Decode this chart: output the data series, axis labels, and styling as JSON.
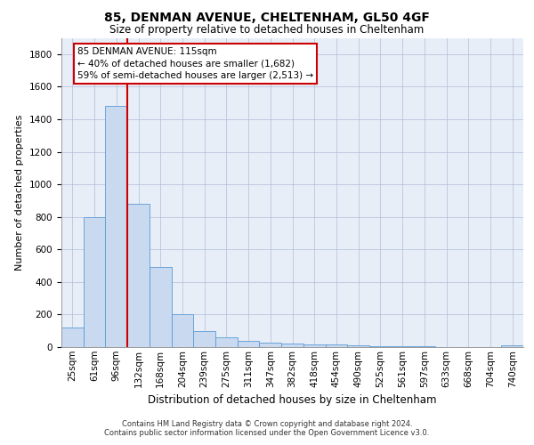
{
  "title1": "85, DENMAN AVENUE, CHELTENHAM, GL50 4GF",
  "title2": "Size of property relative to detached houses in Cheltenham",
  "xlabel": "Distribution of detached houses by size in Cheltenham",
  "ylabel": "Number of detached properties",
  "categories": [
    "25sqm",
    "61sqm",
    "96sqm",
    "132sqm",
    "168sqm",
    "204sqm",
    "239sqm",
    "275sqm",
    "311sqm",
    "347sqm",
    "382sqm",
    "418sqm",
    "454sqm",
    "490sqm",
    "525sqm",
    "561sqm",
    "597sqm",
    "633sqm",
    "668sqm",
    "704sqm",
    "740sqm"
  ],
  "values": [
    120,
    800,
    1480,
    880,
    490,
    205,
    100,
    60,
    40,
    25,
    20,
    18,
    15,
    10,
    8,
    5,
    3,
    2,
    2,
    1,
    10
  ],
  "bar_color": "#c9d9f0",
  "bar_edge_color": "#5b9bd5",
  "vline_x": 2.5,
  "annotation_text": "85 DENMAN AVENUE: 115sqm\n← 40% of detached houses are smaller (1,682)\n59% of semi-detached houses are larger (2,513) →",
  "vline_color": "#cc0000",
  "grid_color": "#b0bcd8",
  "footer1": "Contains HM Land Registry data © Crown copyright and database right 2024.",
  "footer2": "Contains public sector information licensed under the Open Government Licence v3.0.",
  "ylim": [
    0,
    1900
  ],
  "yticks": [
    0,
    200,
    400,
    600,
    800,
    1000,
    1200,
    1400,
    1600,
    1800
  ],
  "bg_color": "#e8eef8",
  "title1_fontsize": 10,
  "title2_fontsize": 8.5,
  "ylabel_fontsize": 8,
  "xlabel_fontsize": 8.5,
  "tick_fontsize": 7.5,
  "ann_fontsize": 7.5,
  "footer_fontsize": 6.0
}
